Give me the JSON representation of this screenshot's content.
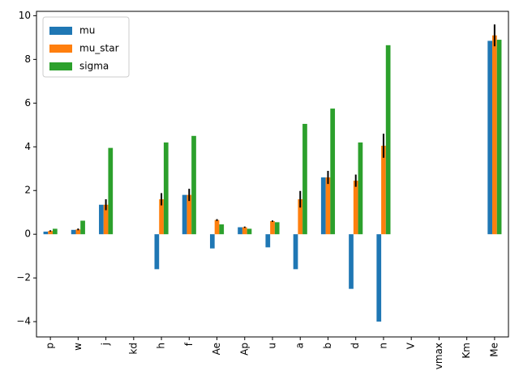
{
  "chart_data": {
    "type": "bar",
    "categories": [
      "p",
      "w",
      "j",
      "kd",
      "h",
      "f",
      "Ae",
      "Ap",
      "u",
      "a",
      "b",
      "d",
      "n",
      "V",
      "vmax",
      "Km",
      "Me"
    ],
    "series": [
      {
        "name": "mu",
        "color": "#1f77b4",
        "values": [
          0.12,
          0.2,
          1.35,
          0,
          -1.6,
          1.8,
          -0.65,
          0.32,
          -0.6,
          -1.6,
          2.6,
          -2.5,
          -4.0,
          0,
          0,
          0,
          8.85
        ]
      },
      {
        "name": "mu_star",
        "color": "#ff7f0e",
        "values": [
          0.15,
          0.22,
          1.35,
          0,
          1.6,
          1.8,
          0.65,
          0.32,
          0.6,
          1.6,
          2.6,
          2.45,
          4.05,
          0,
          0,
          0,
          9.1
        ],
        "errors": [
          0.03,
          0.04,
          0.25,
          0,
          0.28,
          0.28,
          0.04,
          0.03,
          0.03,
          0.38,
          0.3,
          0.28,
          0.55,
          0,
          0,
          0,
          0.5
        ]
      },
      {
        "name": "sigma",
        "color": "#2ca02c",
        "values": [
          0.25,
          0.62,
          3.95,
          0,
          4.2,
          4.5,
          0.45,
          0.25,
          0.55,
          5.05,
          5.75,
          4.2,
          8.65,
          0,
          0,
          0,
          8.9
        ]
      }
    ],
    "title": "",
    "xlabel": "",
    "ylabel": "",
    "ylim": [
      -4.7,
      10.2
    ],
    "yticks": [
      -4,
      -2,
      0,
      2,
      4,
      6,
      8,
      10
    ],
    "ytick_labels": [
      "−4",
      "−2",
      "0",
      "2",
      "4",
      "6",
      "8",
      "10"
    ],
    "grid": false,
    "legend_position": "top-left"
  }
}
